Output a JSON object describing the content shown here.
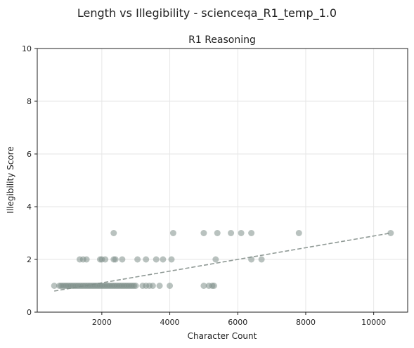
{
  "chart_data": {
    "type": "scatter",
    "suptitle": "Length vs Illegibility - scienceqa_R1_temp_1.0",
    "title": "R1 Reasoning",
    "xlabel": "Character Count",
    "ylabel": "Illegibility Score",
    "xlim": [
      100,
      11000
    ],
    "ylim": [
      0,
      10
    ],
    "xticks": [
      2000,
      4000,
      6000,
      8000,
      10000
    ],
    "yticks": [
      0,
      2,
      4,
      6,
      8,
      10
    ],
    "grid": true,
    "point_color": "#7f8f8a",
    "trend_color": "#909a96",
    "points": [
      [
        600,
        1
      ],
      [
        750,
        1
      ],
      [
        800,
        1
      ],
      [
        850,
        1
      ],
      [
        900,
        1
      ],
      [
        950,
        1
      ],
      [
        1000,
        1
      ],
      [
        1050,
        1
      ],
      [
        1100,
        1
      ],
      [
        1150,
        1
      ],
      [
        1200,
        1
      ],
      [
        1250,
        1
      ],
      [
        1300,
        1
      ],
      [
        1350,
        1
      ],
      [
        1400,
        1
      ],
      [
        1450,
        1
      ],
      [
        1500,
        1
      ],
      [
        1550,
        1
      ],
      [
        1600,
        1
      ],
      [
        1650,
        1
      ],
      [
        1700,
        1
      ],
      [
        1750,
        1
      ],
      [
        1800,
        1
      ],
      [
        1850,
        1
      ],
      [
        1900,
        1
      ],
      [
        1950,
        1
      ],
      [
        2000,
        1
      ],
      [
        2050,
        1
      ],
      [
        2100,
        1
      ],
      [
        2150,
        1
      ],
      [
        2200,
        1
      ],
      [
        2250,
        1
      ],
      [
        2300,
        1
      ],
      [
        2350,
        1
      ],
      [
        2400,
        1
      ],
      [
        2450,
        1
      ],
      [
        2500,
        1
      ],
      [
        2550,
        1
      ],
      [
        2600,
        1
      ],
      [
        2650,
        1
      ],
      [
        2700,
        1
      ],
      [
        2750,
        1
      ],
      [
        2800,
        1
      ],
      [
        2850,
        1
      ],
      [
        2900,
        1
      ],
      [
        2950,
        1
      ],
      [
        3000,
        1
      ],
      [
        3200,
        1
      ],
      [
        3300,
        1
      ],
      [
        3400,
        1
      ],
      [
        3500,
        1
      ],
      [
        3700,
        1
      ],
      [
        4000,
        1
      ],
      [
        5000,
        1
      ],
      [
        5150,
        1
      ],
      [
        5250,
        1
      ],
      [
        5300,
        1
      ],
      [
        1350,
        2
      ],
      [
        1450,
        2
      ],
      [
        1550,
        2
      ],
      [
        1950,
        2
      ],
      [
        2000,
        2
      ],
      [
        2100,
        2
      ],
      [
        2350,
        2
      ],
      [
        2400,
        2
      ],
      [
        2600,
        2
      ],
      [
        3050,
        2
      ],
      [
        3300,
        2
      ],
      [
        3600,
        2
      ],
      [
        3800,
        2
      ],
      [
        4050,
        2
      ],
      [
        5350,
        2
      ],
      [
        6400,
        2
      ],
      [
        6700,
        2
      ],
      [
        2350,
        3
      ],
      [
        4100,
        3
      ],
      [
        5000,
        3
      ],
      [
        5400,
        3
      ],
      [
        5800,
        3
      ],
      [
        6100,
        3
      ],
      [
        6400,
        3
      ],
      [
        7800,
        3
      ],
      [
        10500,
        3
      ]
    ],
    "trend": {
      "x": [
        600,
        10500
      ],
      "y": [
        0.8,
        3.0
      ]
    }
  }
}
